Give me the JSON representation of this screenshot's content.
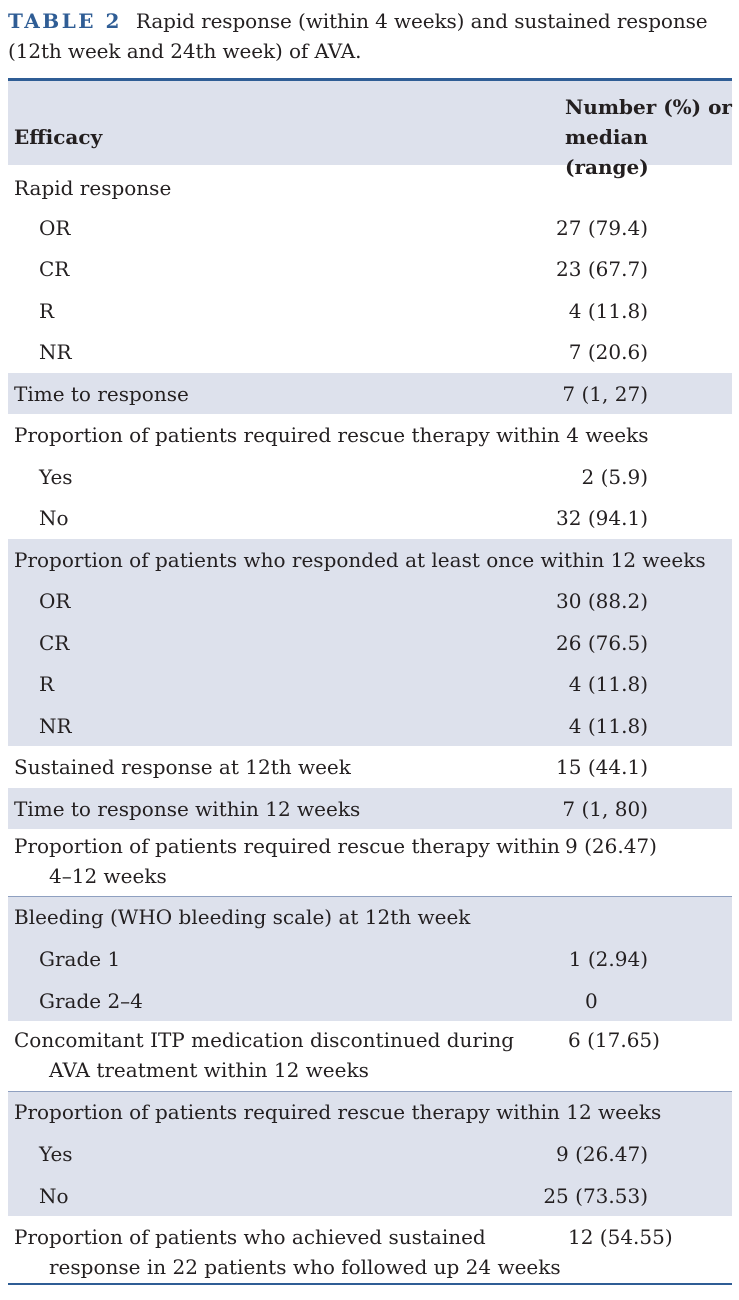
{
  "caption": {
    "label": "TABLE 2",
    "text": "Rapid response (within 4 weeks) and sustained response (12th week and 24th week) of AVA."
  },
  "table": {
    "header": {
      "col1": "Efficacy",
      "col2_line1": "Number (%) or",
      "col2_line2": "median (range)"
    },
    "rows": [
      {
        "label": "Rapid response",
        "value": ""
      },
      {
        "label": "OR",
        "value": "27 (79.4)"
      },
      {
        "label": "CR",
        "value": "23 (67.7)"
      },
      {
        "label": "R",
        "value": "4 (11.8)"
      },
      {
        "label": "NR",
        "value": "7 (20.6)"
      },
      {
        "label": "Time to response",
        "value": "7 (1, 27)"
      },
      {
        "label": "Proportion of patients required rescue therapy within 4 weeks",
        "value": ""
      },
      {
        "label": "Yes",
        "value": "2 (5.9)"
      },
      {
        "label": "No",
        "value": "32 (94.1)"
      },
      {
        "label": "Proportion of patients who responded at least once within 12 weeks",
        "value": ""
      },
      {
        "label": "OR",
        "value": "30 (88.2)"
      },
      {
        "label": "CR",
        "value": "26 (76.5)"
      },
      {
        "label": "R",
        "value": "4 (11.8)"
      },
      {
        "label": "NR",
        "value": "4 (11.8)"
      },
      {
        "label": "Sustained response at 12th week",
        "value": "15 (44.1)"
      },
      {
        "label": "Time to response within 12 weeks",
        "value": "7 (1, 80)"
      },
      {
        "label_line1": "Proportion of patients required rescue therapy within",
        "label_line2": "4–12 weeks",
        "value": "9 (26.47)"
      },
      {
        "label": "Bleeding (WHO bleeding scale) at 12th week",
        "value": ""
      },
      {
        "label": "Grade 1",
        "value": "1 (2.94)"
      },
      {
        "label": "Grade 2–4",
        "value": "0"
      },
      {
        "label_line1": "Concomitant ITP medication discontinued during",
        "label_line2": "AVA treatment within 12 weeks",
        "value": "6 (17.65)"
      },
      {
        "label": "Proportion of patients required rescue therapy within 12 weeks",
        "value": ""
      },
      {
        "label": "Yes",
        "value": "9 (26.47)"
      },
      {
        "label": "No",
        "value": "25 (73.53)"
      },
      {
        "label_line1": "Proportion of patients who achieved sustained",
        "label_line2": "response in 22 patients who followed up 24 weeks",
        "value": "12 (54.55)"
      }
    ]
  },
  "colors": {
    "accent": "#2f5d95",
    "shade": "#dde1ec",
    "text": "#231f20"
  }
}
